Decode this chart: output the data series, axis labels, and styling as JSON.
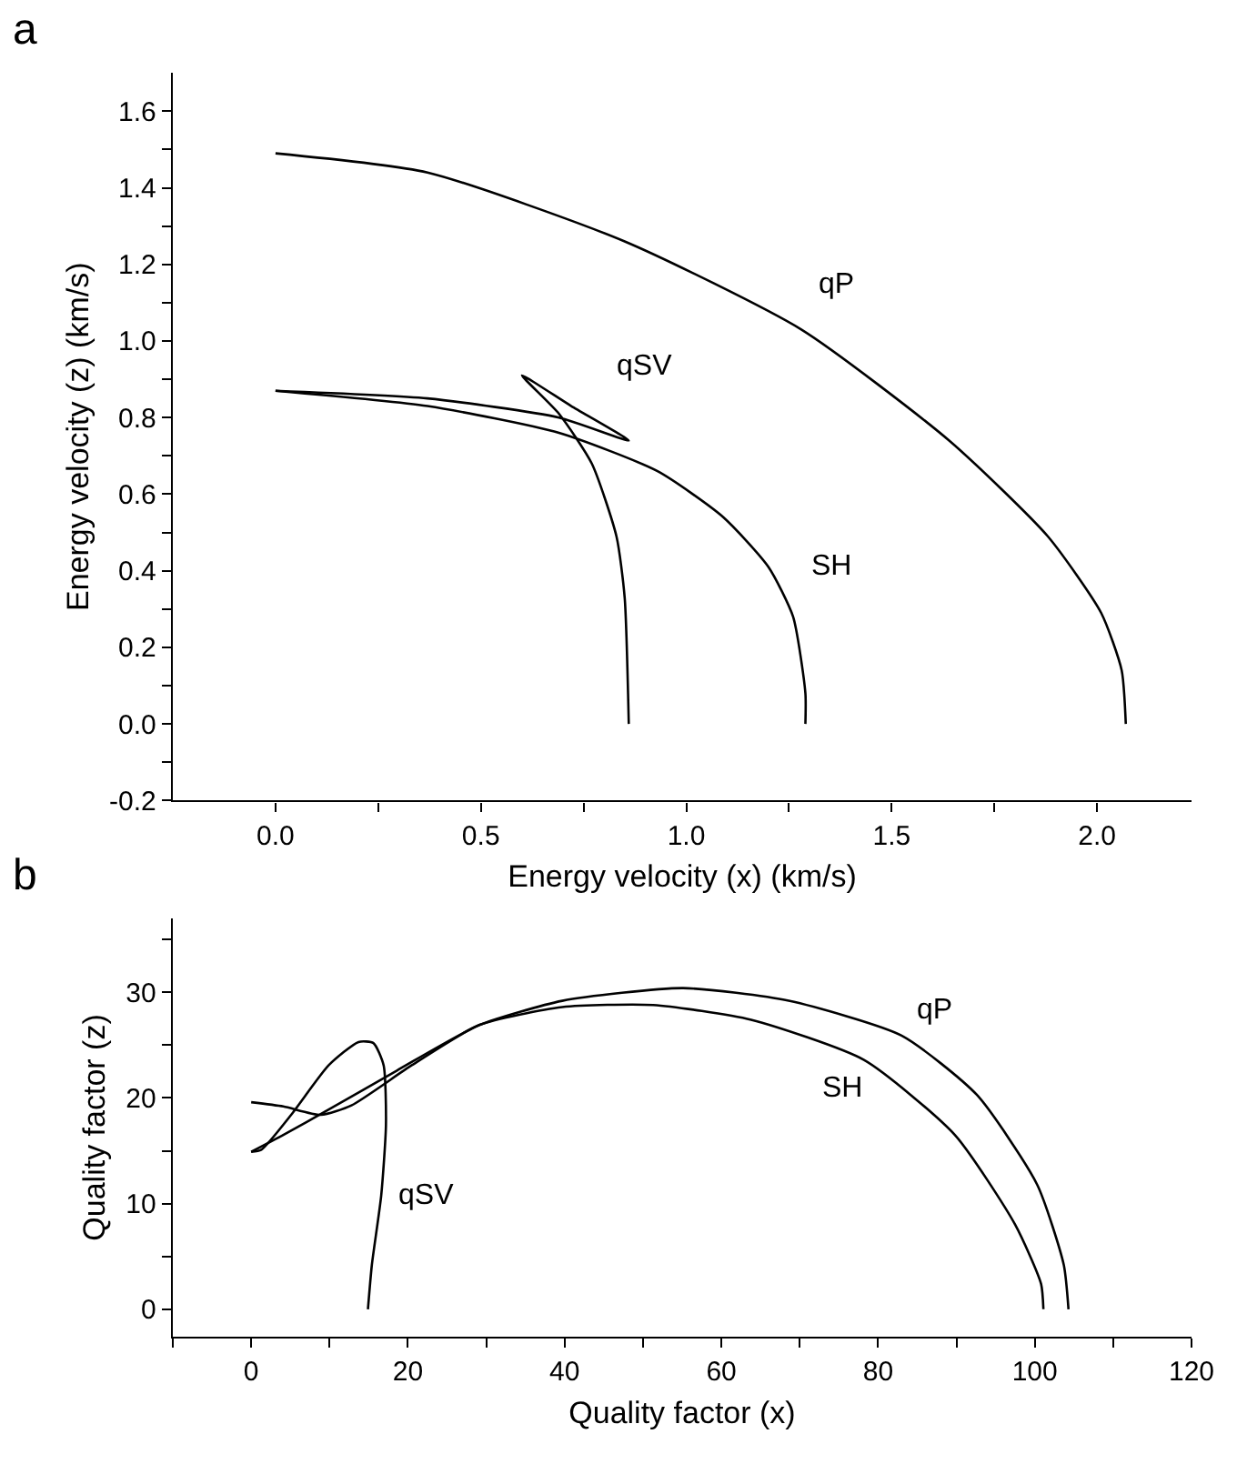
{
  "chart_data": [
    {
      "type": "line",
      "title": "a",
      "xlabel": "Energy velocity (x) (km/s)",
      "ylabel": "Energy velocity (z) (km/s)",
      "xlim": [
        -0.25,
        2.23
      ],
      "ylim": [
        -0.2,
        1.7
      ],
      "xticks": [
        {
          "value": 0.0,
          "label": "0.0"
        },
        {
          "value": 0.25,
          "label": null
        },
        {
          "value": 0.5,
          "label": "0.5"
        },
        {
          "value": 0.75,
          "label": null
        },
        {
          "value": 1.0,
          "label": "1.0"
        },
        {
          "value": 1.25,
          "label": null
        },
        {
          "value": 1.5,
          "label": "1.5"
        },
        {
          "value": 1.75,
          "label": null
        },
        {
          "value": 2.0,
          "label": "2.0"
        }
      ],
      "yticks": [
        {
          "value": -0.2,
          "label": "-0.2"
        },
        {
          "value": -0.1,
          "label": null
        },
        {
          "value": 0.0,
          "label": "0.0"
        },
        {
          "value": 0.1,
          "label": null
        },
        {
          "value": 0.2,
          "label": "0.2"
        },
        {
          "value": 0.3,
          "label": null
        },
        {
          "value": 0.4,
          "label": "0.4"
        },
        {
          "value": 0.5,
          "label": null
        },
        {
          "value": 0.6,
          "label": "0.6"
        },
        {
          "value": 0.7,
          "label": null
        },
        {
          "value": 0.8,
          "label": "0.8"
        },
        {
          "value": 0.9,
          "label": null
        },
        {
          "value": 1.0,
          "label": "1.0"
        },
        {
          "value": 1.1,
          "label": null
        },
        {
          "value": 1.2,
          "label": "1.2"
        },
        {
          "value": 1.3,
          "label": null
        },
        {
          "value": 1.4,
          "label": "1.4"
        },
        {
          "value": 1.5,
          "label": null
        },
        {
          "value": 1.6,
          "label": "1.6"
        }
      ],
      "legend": false,
      "marker": "none",
      "line_style": "solid",
      "series": [
        {
          "name": "qP",
          "color": "#000000",
          "x": [
            0,
            0.37,
            0.85,
            1.28,
            1.64,
            1.88,
            2.01,
            2.06,
            2.07
          ],
          "values": [
            1.49,
            1.44,
            1.26,
            1.03,
            0.74,
            0.49,
            0.29,
            0.14,
            0
          ]
        },
        {
          "name": "qSV",
          "color": "#000000",
          "x": [
            0,
            0.37,
            0.69,
            0.86,
            0.72,
            0.6,
            0.69,
            0.77,
            0.83,
            0.85,
            0.86
          ],
          "values": [
            0.87,
            0.85,
            0.8,
            0.74,
            0.83,
            0.91,
            0.81,
            0.68,
            0.49,
            0.33,
            0
          ]
        },
        {
          "name": "SH",
          "color": "#000000",
          "x": [
            0,
            0.37,
            0.69,
            0.93,
            1.09,
            1.2,
            1.26,
            1.29,
            1.29
          ],
          "values": [
            0.87,
            0.83,
            0.76,
            0.66,
            0.54,
            0.41,
            0.28,
            0.08,
            0
          ]
        }
      ]
    },
    {
      "type": "line",
      "title": "b",
      "xlabel": "Quality factor (x)",
      "ylabel": "Quality factor (z)",
      "xlim": [
        -10,
        120
      ],
      "ylim": [
        -2.6,
        37
      ],
      "xticks": [
        {
          "value": -10,
          "label": null
        },
        0,
        {
          "value": 10,
          "label": null
        },
        20,
        {
          "value": 30,
          "label": null
        },
        40,
        {
          "value": 50,
          "label": null
        },
        60,
        {
          "value": 70,
          "label": null
        },
        80,
        {
          "value": 90,
          "label": null
        },
        100,
        {
          "value": 110,
          "label": null
        },
        120
      ],
      "yticks": [
        0,
        {
          "value": 5,
          "label": null
        },
        10,
        {
          "value": 15,
          "label": null
        },
        20,
        {
          "value": 25,
          "label": null
        },
        30,
        {
          "value": 35,
          "label": null
        }
      ],
      "legend": false,
      "marker": "none",
      "line_style": "solid",
      "series": [
        {
          "name": "qP",
          "color": "#000000",
          "x": [
            0,
            4.1,
            9.9,
            18.6,
            29.1,
            39.7,
            55.1,
            68.6,
            83,
            92.6,
            100.3,
            103.7,
            104.3
          ],
          "values": [
            14.9,
            16.5,
            18.9,
            22.6,
            26.9,
            29.2,
            30.4,
            29.2,
            25.9,
            20.3,
            11.8,
            4.2,
            0
          ]
        },
        {
          "name": "qSV",
          "color": "#000000",
          "x": [
            0,
            1.3,
            5.1,
            9.9,
            13.7,
            15.6,
            16.9,
            17.2,
            16.6,
            15.4,
            14.9
          ],
          "values": [
            14.9,
            15.1,
            18.4,
            23.1,
            25.3,
            25.2,
            23.1,
            17.5,
            10.8,
            4.2,
            0
          ]
        },
        {
          "name": "SH",
          "color": "#000000",
          "x": [
            0,
            4.1,
            8.9,
            12.8,
            20.5,
            29.1,
            39.7,
            51.3,
            63.8,
            78.2,
            89.8,
            97.5,
            100.8,
            101.1
          ],
          "values": [
            19.6,
            19.2,
            18.4,
            19.3,
            23.1,
            26.9,
            28.6,
            28.8,
            27.4,
            23.6,
            16.5,
            8.0,
            2.4,
            0
          ]
        }
      ]
    }
  ]
}
